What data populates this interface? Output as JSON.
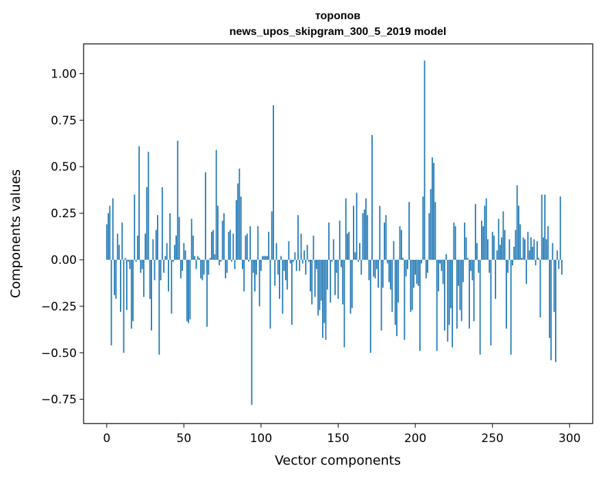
{
  "chart_data": {
    "type": "bar",
    "title": "торопов",
    "subtitle": "news_upos_skipgram_300_5_2019 model",
    "xlabel": "Vector components",
    "ylabel": "Components values",
    "xlim": [
      -15,
      315
    ],
    "ylim": [
      -0.88,
      1.16
    ],
    "xticks": [
      0,
      50,
      100,
      150,
      200,
      250,
      300
    ],
    "xtick_labels": [
      "0",
      "50",
      "100",
      "150",
      "200",
      "250",
      "300"
    ],
    "yticks": [
      1.0,
      0.75,
      0.5,
      0.25,
      0.0,
      -0.25,
      -0.5,
      -0.75
    ],
    "ytick_labels": [
      "1.00",
      "0.75",
      "0.50",
      "0.25",
      "0.00",
      "−0.25",
      "−0.50",
      "−0.75"
    ],
    "bar_color": "#1f77b4",
    "grid": false,
    "legend": "none",
    "values": [
      0.19,
      0.25,
      0.29,
      -0.46,
      0.33,
      -0.19,
      -0.21,
      0.14,
      0.08,
      -0.28,
      0.2,
      -0.5,
      0.01,
      -0.27,
      -0.01,
      -0.05,
      -0.37,
      -0.33,
      0.35,
      -0.01,
      0.13,
      0.61,
      -0.07,
      -0.05,
      -0.2,
      0.14,
      0.39,
      0.58,
      -0.21,
      -0.38,
      0.11,
      -0.11,
      0.16,
      0.24,
      -0.51,
      -0.11,
      0.39,
      -0.07,
      0.02,
      0.09,
      -0.17,
      0.25,
      -0.29,
      -0.01,
      0.08,
      0.13,
      0.64,
      0.23,
      -0.1,
      -0.06,
      0.09,
      0.05,
      -0.33,
      -0.34,
      -0.32,
      0.22,
      0.13,
      0.02,
      -0.05,
      0.02,
      0.01,
      -0.1,
      -0.11,
      -0.08,
      0.47,
      -0.36,
      -0.08,
      0.01,
      0.15,
      0.16,
      0.03,
      0.59,
      0.29,
      -0.03,
      -0.01,
      0.21,
      0.25,
      -0.1,
      -0.07,
      0.15,
      0.16,
      -0.01,
      0.14,
      -0.05,
      0.32,
      0.41,
      0.49,
      0.34,
      -0.05,
      -0.17,
      0.13,
      0.14,
      -0.01,
      0.18,
      -0.78,
      -0.07,
      -0.17,
      -0.08,
      0.18,
      -0.25,
      -0.06,
      0.02,
      0.02,
      0.02,
      0.02,
      0.15,
      -0.37,
      0.26,
      0.83,
      -0.14,
      0.09,
      -0.08,
      -0.21,
      0.02,
      -0.29,
      -0.06,
      -0.11,
      -0.16,
      0.1,
      -0.02,
      -0.35,
      -0.01,
      0.04,
      -0.06,
      0.24,
      -0.06,
      0.14,
      -0.02,
      0.05,
      -0.08,
      0.08,
      -0.01,
      -0.17,
      -0.24,
      0.13,
      -0.2,
      -0.05,
      -0.3,
      -0.27,
      -0.22,
      -0.42,
      -0.34,
      -0.43,
      -0.16,
      0.2,
      -0.23,
      -0.01,
      0.11,
      -0.19,
      -0.07,
      -0.21,
      0.21,
      -0.04,
      -0.24,
      -0.47,
      0.33,
      0.14,
      0.15,
      -0.29,
      -0.26,
      0.29,
      0.04,
      0.36,
      -0.01,
      0.09,
      -0.08,
      0.25,
      0.27,
      0.33,
      0.24,
      -0.11,
      -0.5,
      0.67,
      -0.09,
      -0.1,
      -0.05,
      -0.15,
      0.29,
      -0.38,
      -0.15,
      0.2,
      0.24,
      -0.02,
      -0.12,
      -0.16,
      -0.28,
      0.1,
      -0.35,
      -0.41,
      -0.23,
      0.18,
      0.16,
      0.01,
      -0.43,
      -0.09,
      -0.05,
      0.31,
      -0.28,
      -0.27,
      -0.15,
      -0.08,
      -0.13,
      -0.14,
      -0.49,
      -0.02,
      0.34,
      1.07,
      -0.1,
      -0.07,
      0.25,
      0.38,
      0.55,
      0.52,
      0.31,
      -0.49,
      -0.17,
      -0.02,
      -0.06,
      -0.13,
      -0.38,
      0.03,
      -0.44,
      -0.35,
      -0.26,
      -0.47,
      0.2,
      0.18,
      -0.37,
      -0.14,
      -0.27,
      -0.33,
      -0.12,
      0.2,
      0.12,
      0.01,
      -0.37,
      -0.06,
      -0.11,
      -0.33,
      0.3,
      0.09,
      -0.07,
      -0.51,
      0.21,
      0.18,
      0.29,
      0.33,
      0.11,
      -0.07,
      -0.46,
      0.15,
      0.13,
      -0.21,
      0.05,
      0.22,
      0.08,
      0.12,
      0.26,
      0.16,
      -0.37,
      -0.07,
      0.11,
      -0.51,
      -0.03,
      0.07,
      0.16,
      0.4,
      0.29,
      0.19,
      0.01,
      0.12,
      0.11,
      -0.13,
      0.15,
      0.05,
      0.12,
      0.07,
      0.11,
      -0.03,
      0.1,
      0.01,
      -0.31,
      0.35,
      0.12,
      0.35,
      0.11,
      0.18,
      -0.42,
      -0.54,
      0.09,
      -0.28,
      -0.55,
      0.05,
      -0.05,
      0.34,
      -0.08
    ]
  }
}
